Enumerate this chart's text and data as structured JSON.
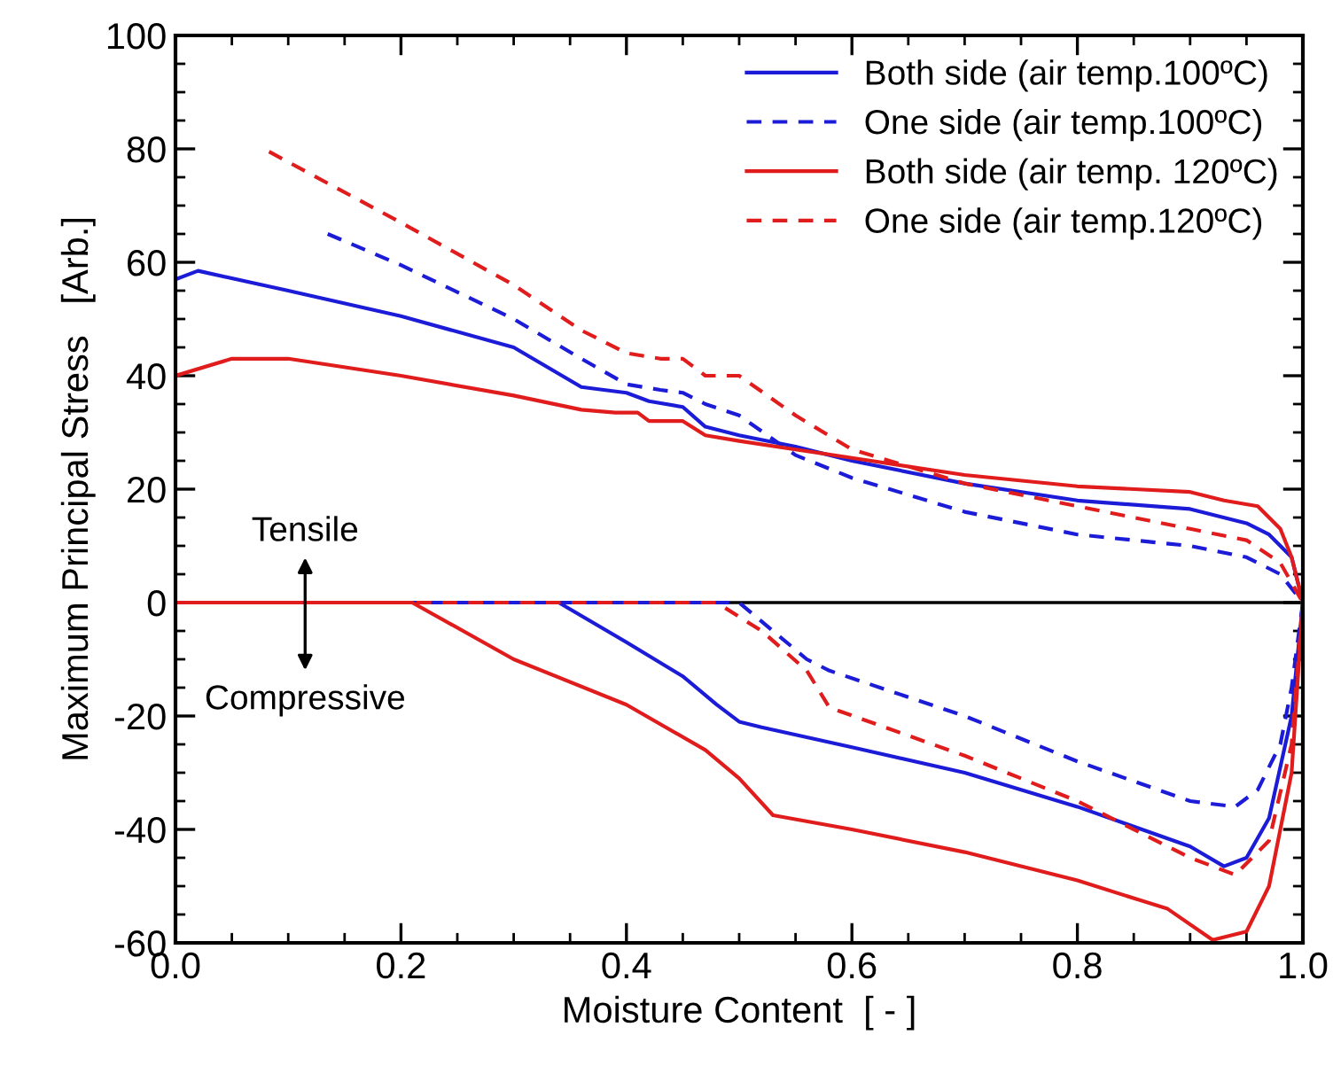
{
  "chart_data": {
    "type": "line",
    "xlabel": "Moisture Content  [ - ]",
    "ylabel": "Maximum Principal Stress   [Arb.]",
    "xlim": [
      0,
      1
    ],
    "ylim": [
      -60,
      100
    ],
    "xticks": [
      {
        "value": 0,
        "label": "0.0"
      },
      {
        "value": 0.2,
        "label": "0.2"
      },
      {
        "value": 0.4,
        "label": "0.4"
      },
      {
        "value": 0.6,
        "label": "0.6"
      },
      {
        "value": 0.8,
        "label": "0.8"
      },
      {
        "value": 1,
        "label": "1.0"
      }
    ],
    "yticks": [
      -60,
      -40,
      -20,
      0,
      20,
      40,
      60,
      80,
      100
    ],
    "grid": false,
    "legend": "top right",
    "marker": "none",
    "annotations": [
      "Tensile",
      "Compressive"
    ],
    "ref_lines": [
      {
        "axis": "y",
        "value": 0,
        "color": "#000000",
        "line_style": "solid"
      }
    ],
    "series": [
      {
        "name": "Both side (air temp.100ºC)",
        "color": "#1c1cd8",
        "line_style": "solid",
        "x": [
          0,
          0.02,
          0.1,
          0.2,
          0.3,
          0.36,
          0.4,
          0.42,
          0.45,
          0.47,
          0.5,
          0.55,
          0.6,
          0.7,
          0.8,
          0.9,
          0.95,
          0.97,
          0.99,
          1.0,
          0.99,
          0.97,
          0.95,
          0.93,
          0.9,
          0.8,
          0.7,
          0.6,
          0.52,
          0.5,
          0.48,
          0.45,
          0.4,
          0.34,
          0
        ],
        "values": [
          57,
          58.5,
          55,
          50.5,
          45,
          38,
          37,
          35.5,
          34.5,
          31,
          29.5,
          27.5,
          25,
          21,
          18,
          16.5,
          14,
          12,
          8,
          0,
          -20,
          -38,
          -45,
          -46.5,
          -43,
          -36,
          -30,
          -25.5,
          -22,
          -21,
          -18,
          -13,
          -7,
          0,
          0
        ]
      },
      {
        "name": "One side (air temp.100ºC)",
        "color": "#1c1cd8",
        "line_style": "dashed",
        "x": [
          0.135,
          0.2,
          0.3,
          0.36,
          0.4,
          0.43,
          0.45,
          0.47,
          0.5,
          0.55,
          0.6,
          0.7,
          0.8,
          0.9,
          0.95,
          0.98,
          1.0,
          0.99,
          0.98,
          0.96,
          0.94,
          0.9,
          0.8,
          0.7,
          0.58,
          0.56,
          0.53,
          0.5,
          0
        ],
        "values": [
          65,
          59.5,
          50,
          43,
          38.5,
          37.5,
          37,
          35,
          33,
          26,
          22,
          16,
          12,
          10,
          8,
          5,
          0,
          -15,
          -25,
          -33,
          -36,
          -35,
          -28,
          -20,
          -12,
          -10,
          -5,
          0,
          0
        ]
      },
      {
        "name": "Both side (air temp. 120ºC)",
        "color": "#e01c1c",
        "line_style": "solid",
        "x": [
          0,
          0.05,
          0.1,
          0.2,
          0.3,
          0.36,
          0.39,
          0.41,
          0.42,
          0.45,
          0.47,
          0.5,
          0.55,
          0.6,
          0.7,
          0.8,
          0.9,
          0.93,
          0.96,
          0.98,
          0.99,
          1.0,
          0.99,
          0.97,
          0.95,
          0.92,
          0.88,
          0.8,
          0.7,
          0.6,
          0.53,
          0.5,
          0.47,
          0.4,
          0.3,
          0.21,
          0
        ],
        "values": [
          40,
          43,
          43,
          40,
          36.5,
          34,
          33.5,
          33.5,
          32,
          32,
          29.5,
          28.5,
          27,
          25.5,
          22.5,
          20.5,
          19.5,
          18,
          17,
          13,
          8,
          0,
          -30,
          -50,
          -58,
          -59.5,
          -54,
          -49,
          -44,
          -40,
          -37.5,
          -31,
          -26,
          -18,
          -10,
          0,
          0
        ]
      },
      {
        "name": "One side (air temp.120ºC)",
        "color": "#e01c1c",
        "line_style": "dashed",
        "x": [
          0.083,
          0.2,
          0.3,
          0.36,
          0.4,
          0.43,
          0.45,
          0.47,
          0.5,
          0.55,
          0.6,
          0.7,
          0.8,
          0.9,
          0.95,
          0.98,
          1.0,
          0.99,
          0.97,
          0.94,
          0.9,
          0.8,
          0.7,
          0.58,
          0.56,
          0.52,
          0.48,
          0
        ],
        "values": [
          79.5,
          67,
          56,
          48,
          44,
          43,
          43,
          40,
          40,
          33,
          27,
          21,
          17,
          13,
          11,
          7,
          0,
          -25,
          -42,
          -48,
          -45,
          -35,
          -27,
          -18.5,
          -12,
          -5,
          0,
          0
        ]
      }
    ]
  }
}
